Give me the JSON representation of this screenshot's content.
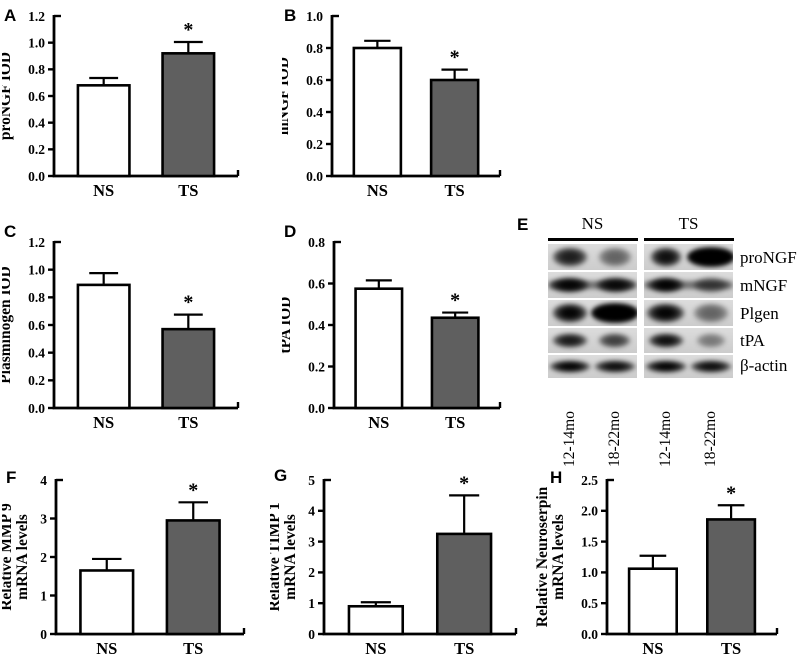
{
  "colors": {
    "ns_fill": "#ffffff",
    "ts_fill": "#5f5f5f",
    "axis": "#000000"
  },
  "chart_data": [
    {
      "id": "A",
      "panel_label": "A",
      "type": "bar",
      "categories": [
        "NS",
        "TS"
      ],
      "values": [
        0.68,
        0.92
      ],
      "errors": [
        0.055,
        0.085
      ],
      "sig": [
        "",
        "*"
      ],
      "ylabel_lines": [
        "proNGF IOD"
      ],
      "ylim": [
        0,
        1.2
      ],
      "ytick": 0.2,
      "decimals": 1
    },
    {
      "id": "B",
      "panel_label": "B",
      "type": "bar",
      "categories": [
        "NS",
        "TS"
      ],
      "values": [
        0.8,
        0.6
      ],
      "errors": [
        0.045,
        0.065
      ],
      "sig": [
        "",
        "*"
      ],
      "ylabel_lines": [
        "mNGF IOD"
      ],
      "ylim": [
        0,
        1.0
      ],
      "ytick": 0.2,
      "decimals": 1
    },
    {
      "id": "C",
      "panel_label": "C",
      "type": "bar",
      "categories": [
        "NS",
        "TS"
      ],
      "values": [
        0.89,
        0.57
      ],
      "errors": [
        0.085,
        0.105
      ],
      "sig": [
        "",
        "*"
      ],
      "ylabel_lines": [
        "Plasminogen IOD"
      ],
      "ylim": [
        0,
        1.2
      ],
      "ytick": 0.2,
      "decimals": 1
    },
    {
      "id": "D",
      "panel_label": "D",
      "type": "bar",
      "categories": [
        "NS",
        "TS"
      ],
      "values": [
        0.575,
        0.435
      ],
      "errors": [
        0.04,
        0.025
      ],
      "sig": [
        "",
        "*"
      ],
      "ylabel_lines": [
        "tPA IOD"
      ],
      "ylim": [
        0,
        0.8
      ],
      "ytick": 0.2,
      "decimals": 1
    },
    {
      "id": "F",
      "panel_label": "F",
      "type": "bar",
      "categories": [
        "NS",
        "TS"
      ],
      "values": [
        1.65,
        2.95
      ],
      "errors": [
        0.3,
        0.47
      ],
      "sig": [
        "",
        "*"
      ],
      "ylabel_lines": [
        "Relative MMP 9",
        "mRNA levels"
      ],
      "ylim": [
        0,
        4
      ],
      "ytick": 1,
      "decimals": 0
    },
    {
      "id": "G",
      "panel_label": "G",
      "type": "bar",
      "categories": [
        "NS",
        "TS"
      ],
      "values": [
        0.9,
        3.25
      ],
      "errors": [
        0.13,
        1.25
      ],
      "sig": [
        "",
        "*"
      ],
      "ylabel_lines": [
        "Relative TIMP 1",
        "mRNA levels"
      ],
      "ylim": [
        0,
        5
      ],
      "ytick": 1,
      "decimals": 0
    },
    {
      "id": "H",
      "panel_label": "H",
      "type": "bar",
      "categories": [
        "NS",
        "TS"
      ],
      "values": [
        1.06,
        1.86
      ],
      "errors": [
        0.21,
        0.23
      ],
      "sig": [
        "",
        "*"
      ],
      "ylabel_lines": [
        "Relative Neuroserpin",
        "mRNA levels"
      ],
      "ylim": [
        0,
        2.5
      ],
      "ytick": 0.5,
      "decimals": 1
    }
  ],
  "blot": {
    "panel_label": "E",
    "group_headers": [
      "NS",
      "TS"
    ],
    "lane_labels": [
      "12-14mo",
      "18-22mo",
      "12-14mo",
      "18-22mo"
    ],
    "rows": [
      {
        "label": "proNGF",
        "style": "blob",
        "connect": false,
        "lanes": [
          {
            "d": 0.78,
            "w": 0.8
          },
          {
            "d": 0.45,
            "w": 0.75
          },
          {
            "d": 0.85,
            "w": 0.7
          },
          {
            "d": 1.0,
            "w": 1.05
          }
        ]
      },
      {
        "label": "mNGF",
        "style": "band",
        "connect": true,
        "lanes": [
          {
            "d": 0.88,
            "w": 0.85
          },
          {
            "d": 0.85,
            "w": 0.85
          },
          {
            "d": 0.9,
            "w": 0.8
          },
          {
            "d": 0.5,
            "w": 0.8
          }
        ]
      },
      {
        "label": "Plgen",
        "style": "blob",
        "connect": false,
        "lanes": [
          {
            "d": 0.9,
            "w": 0.8
          },
          {
            "d": 1.0,
            "w": 1.05
          },
          {
            "d": 0.9,
            "w": 0.85
          },
          {
            "d": 0.45,
            "w": 0.8
          }
        ]
      },
      {
        "label": "tPA",
        "style": "band",
        "connect": false,
        "lanes": [
          {
            "d": 0.8,
            "w": 0.8
          },
          {
            "d": 0.62,
            "w": 0.72
          },
          {
            "d": 0.85,
            "w": 0.8
          },
          {
            "d": 0.35,
            "w": 0.65
          }
        ]
      },
      {
        "label": "β-actin",
        "style": "band",
        "connect": false,
        "lanes": [
          {
            "d": 0.9,
            "w": 0.92
          },
          {
            "d": 0.85,
            "w": 0.92
          },
          {
            "d": 0.9,
            "w": 0.92
          },
          {
            "d": 0.85,
            "w": 0.92
          }
        ]
      }
    ]
  }
}
